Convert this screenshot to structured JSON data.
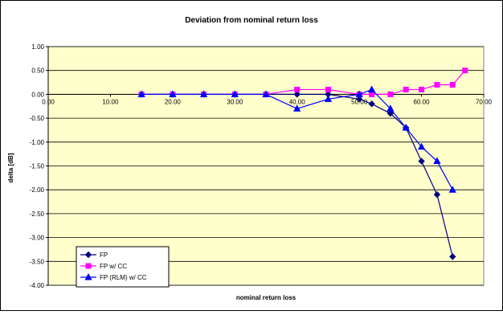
{
  "chart_data": {
    "type": "line",
    "title": "Deviation from nominal return loss",
    "xlabel": "nominal return loss",
    "ylabel": "delta [dB]",
    "xlim": [
      0,
      70
    ],
    "ylim": [
      -4,
      1
    ],
    "x_ticks": [
      "0.00",
      "10.00",
      "20.00",
      "30.00",
      "40.00",
      "50.00",
      "60.00",
      "70.00"
    ],
    "y_ticks": [
      "1.00",
      "0.50",
      "0.00",
      "-0.50",
      "-1.00",
      "-1.50",
      "-2.00",
      "-2.50",
      "-3.00",
      "-3.50",
      "-4.00"
    ],
    "grid": true,
    "legend_position": "bottom-left",
    "plot_background": "#FFFFCC",
    "series": [
      {
        "name": "FP",
        "color": "#000080",
        "marker": "diamond",
        "x": [
          15,
          20,
          25,
          30,
          35,
          40,
          45,
          50,
          52,
          55,
          57.5,
          60,
          62.5,
          65
        ],
        "y": [
          0,
          0,
          0,
          0,
          0,
          0,
          0,
          -0.1,
          -0.2,
          -0.4,
          -0.7,
          -1.4,
          -2.1,
          -3.4
        ]
      },
      {
        "name": "FP w/ CC",
        "color": "#FF00FF",
        "marker": "square",
        "x": [
          15,
          20,
          25,
          30,
          35,
          40,
          45,
          50,
          52,
          55,
          57.5,
          60,
          62.5,
          65,
          67
        ],
        "y": [
          0,
          0,
          0,
          0,
          0,
          0.1,
          0.1,
          0,
          0,
          0,
          0.1,
          0.1,
          0.2,
          0.2,
          0.5
        ]
      },
      {
        "name": "FP (RLM) w/ CC",
        "color": "#0000FF",
        "marker": "triangle",
        "x": [
          15,
          20,
          25,
          30,
          35,
          40,
          45,
          50,
          52,
          55,
          57.5,
          60,
          62.5,
          65
        ],
        "y": [
          0,
          0,
          0,
          0,
          0,
          -0.3,
          -0.1,
          0,
          0.1,
          -0.3,
          -0.7,
          -1.1,
          -1.4,
          -2.0
        ]
      }
    ]
  }
}
